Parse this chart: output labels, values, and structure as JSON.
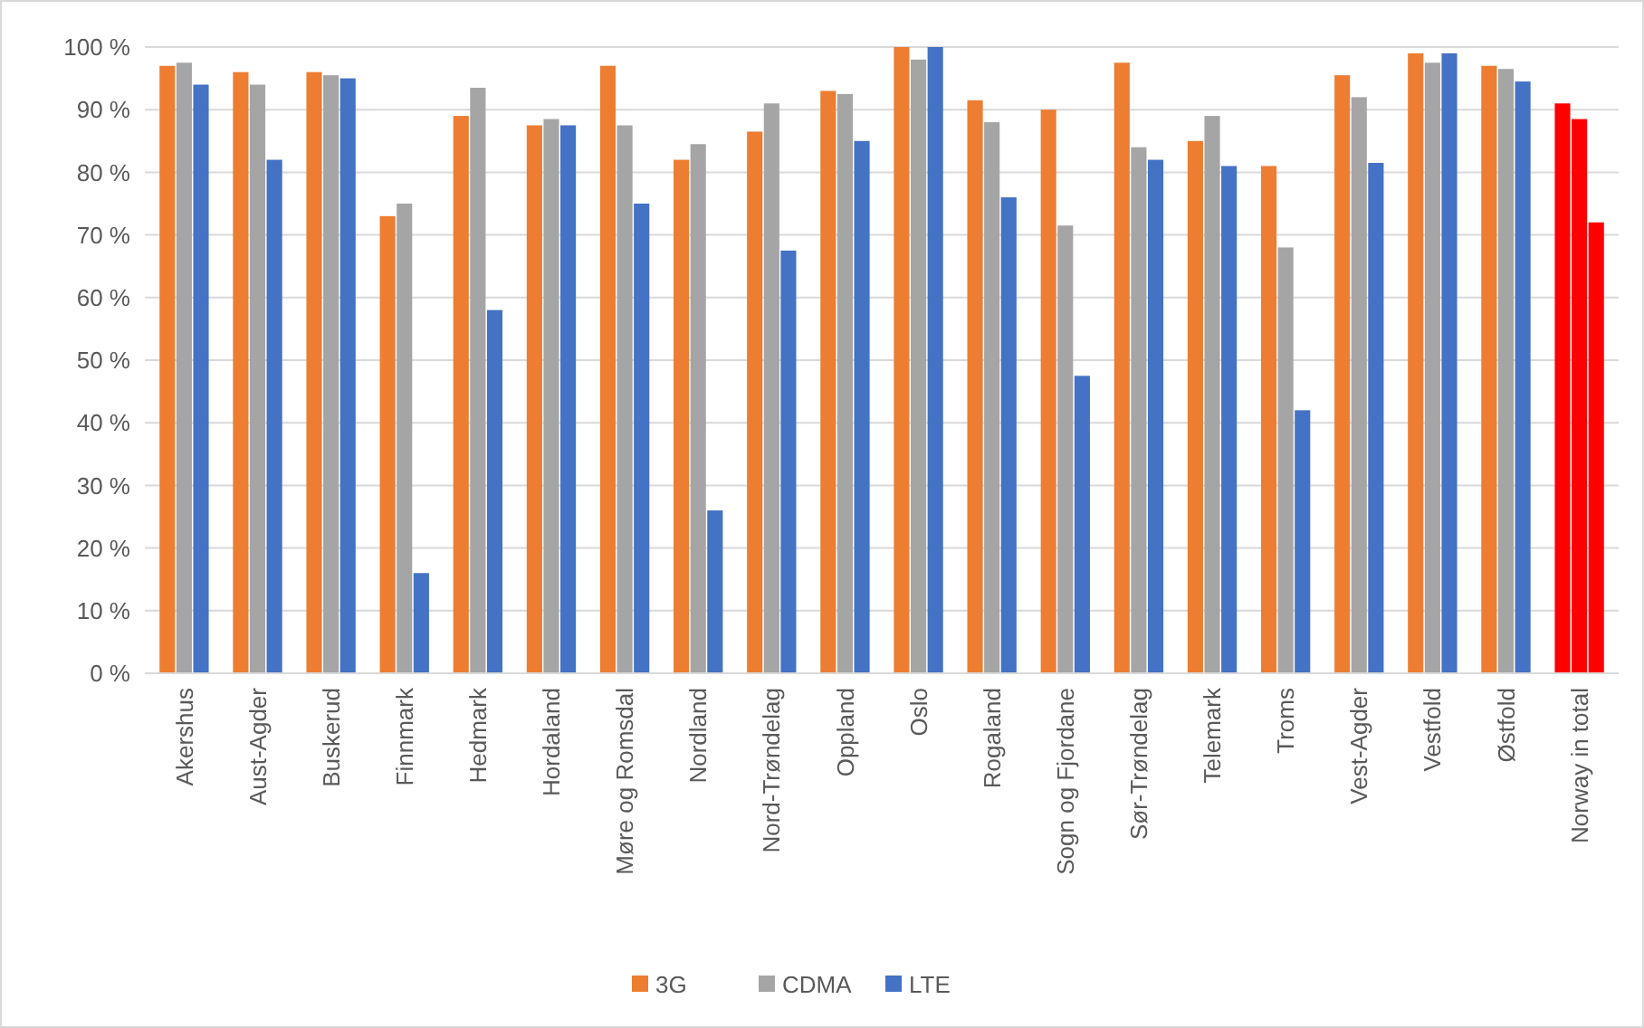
{
  "chart_data": {
    "type": "bar",
    "categories": [
      "Akershus",
      "Aust-Agder",
      "Buskerud",
      "Finnmark",
      "Hedmark",
      "Hordaland",
      "Møre og Romsdal",
      "Nordland",
      "Nord-Trøndelag",
      "Oppland",
      "Oslo",
      "Rogaland",
      "Sogn og Fjordane",
      "Sør-Trøndelag",
      "Telemark",
      "Troms",
      "Vest-Agder",
      "Vestfold",
      "Østfold",
      "Norway in total"
    ],
    "series": [
      {
        "name": "3G",
        "color": "#ed7d31",
        "colors": [
          "#ed7d31",
          "#ed7d31",
          "#ed7d31",
          "#ed7d31",
          "#ed7d31",
          "#ed7d31",
          "#ed7d31",
          "#ed7d31",
          "#ed7d31",
          "#ed7d31",
          "#ed7d31",
          "#ed7d31",
          "#ed7d31",
          "#ed7d31",
          "#ed7d31",
          "#ed7d31",
          "#ed7d31",
          "#ed7d31",
          "#ed7d31",
          "#ff0000"
        ],
        "values": [
          97,
          96,
          96,
          73,
          89,
          87.5,
          97,
          82,
          86.5,
          93,
          100,
          91.5,
          90,
          97.5,
          85,
          81,
          95.5,
          99,
          97,
          91
        ]
      },
      {
        "name": "CDMA",
        "color": "#a5a5a5",
        "colors": [
          "#a5a5a5",
          "#a5a5a5",
          "#a5a5a5",
          "#a5a5a5",
          "#a5a5a5",
          "#a5a5a5",
          "#a5a5a5",
          "#a5a5a5",
          "#a5a5a5",
          "#a5a5a5",
          "#a5a5a5",
          "#a5a5a5",
          "#a5a5a5",
          "#a5a5a5",
          "#a5a5a5",
          "#a5a5a5",
          "#a5a5a5",
          "#a5a5a5",
          "#a5a5a5",
          "#ff0000"
        ],
        "values": [
          97.5,
          94,
          95.5,
          75,
          93.5,
          88.5,
          87.5,
          84.5,
          91,
          92.5,
          98,
          88,
          71.5,
          84,
          89,
          68,
          92,
          97.5,
          96.5,
          88.5
        ]
      },
      {
        "name": "LTE",
        "color": "#4472c4",
        "colors": [
          "#4472c4",
          "#4472c4",
          "#4472c4",
          "#4472c4",
          "#4472c4",
          "#4472c4",
          "#4472c4",
          "#4472c4",
          "#4472c4",
          "#4472c4",
          "#4472c4",
          "#4472c4",
          "#4472c4",
          "#4472c4",
          "#4472c4",
          "#4472c4",
          "#4472c4",
          "#4472c4",
          "#4472c4",
          "#ff0000"
        ],
        "values": [
          94,
          82,
          95,
          16,
          58,
          87.5,
          75,
          26,
          67.5,
          85,
          100,
          76,
          47.5,
          82,
          81,
          42,
          81.5,
          99,
          94.5,
          72
        ]
      }
    ],
    "ylim": [
      0,
      100
    ],
    "yticks": [
      {
        "value": 0,
        "label": "0 %"
      },
      {
        "value": 10,
        "label": "10 %"
      },
      {
        "value": 20,
        "label": "20 %"
      },
      {
        "value": 30,
        "label": "30 %"
      },
      {
        "value": 40,
        "label": "40 %"
      },
      {
        "value": 50,
        "label": "50 %"
      },
      {
        "value": 60,
        "label": "60 %"
      },
      {
        "value": 70,
        "label": "70 %"
      },
      {
        "value": 80,
        "label": "80 %"
      },
      {
        "value": 90,
        "label": "90 %"
      },
      {
        "value": 100,
        "label": "100 %"
      }
    ],
    "grid": "y",
    "legend": "bottom"
  }
}
